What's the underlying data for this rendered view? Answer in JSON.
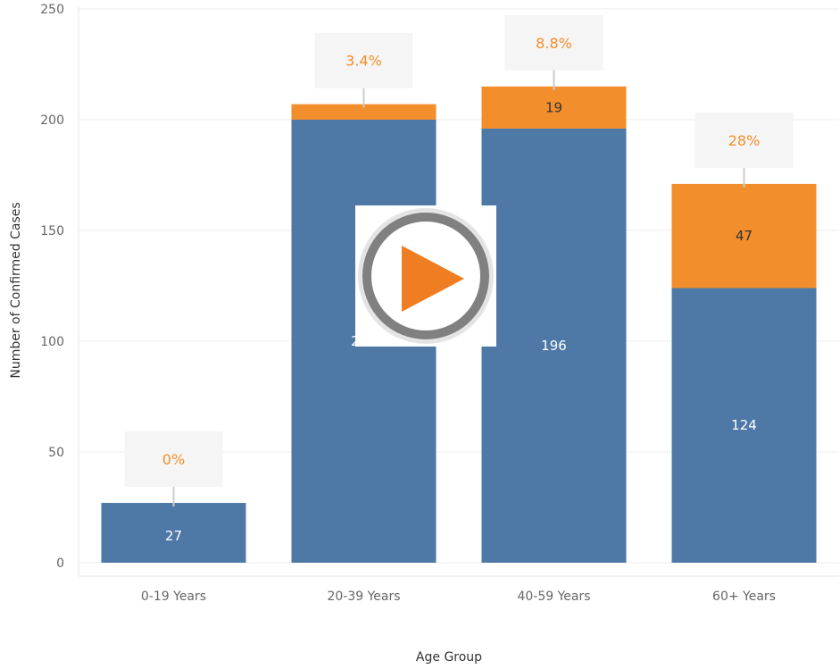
{
  "chart_data": {
    "type": "bar",
    "stacked": true,
    "categories": [
      "0-19 Years",
      "20-39 Years",
      "40-59 Years",
      "60+ Years"
    ],
    "series": [
      {
        "values": [
          27,
          200,
          196,
          124
        ],
        "color": "#4e79a7"
      },
      {
        "values": [
          0,
          7,
          19,
          47
        ],
        "color": "#f28e2b"
      }
    ],
    "segment_labels": [
      [
        "27",
        "200",
        "196",
        "124"
      ],
      [
        "",
        "",
        "19",
        "47"
      ]
    ],
    "percent_labels": [
      "0%",
      "3.4%",
      "8.8%",
      "28%"
    ],
    "xlabel": "Age Group",
    "ylabel": "Number of Confirmed Cases",
    "ylim": [
      0,
      250
    ],
    "yticks": [
      0,
      50,
      100,
      150,
      200,
      250
    ],
    "grid": true,
    "colors": {
      "callout_text": "#f28e2b",
      "callout_bg": "#f5f5f5",
      "grid": "#eeeeee"
    }
  },
  "overlay": {
    "icon": "play-icon",
    "ring_color": "#808080",
    "triangle_color": "#ef7d22"
  }
}
